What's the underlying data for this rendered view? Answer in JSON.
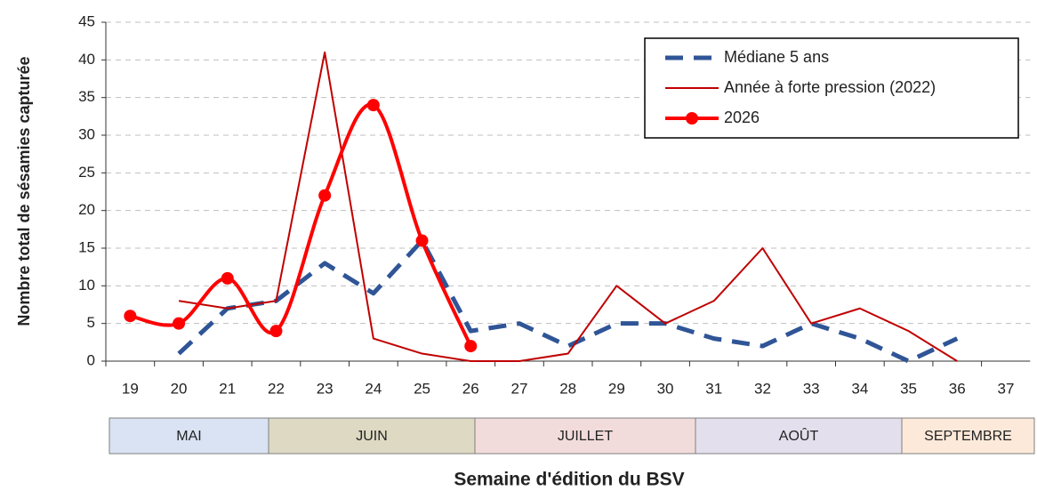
{
  "chart_data": {
    "type": "line",
    "x_label": "Semaine d'édition du BSV",
    "y_label": "Nombre total de sésamies capturée",
    "categories": [
      "19",
      "20",
      "21",
      "22",
      "23",
      "24",
      "25",
      "26",
      "27",
      "28",
      "29",
      "30",
      "31",
      "32",
      "33",
      "34",
      "35",
      "36",
      "37"
    ],
    "months": [
      "MAI",
      "JUIN",
      "JUILLET",
      "AOÛT",
      "SEPTEMBRE"
    ],
    "ylim": [
      0,
      45
    ],
    "yticks": [
      0,
      5,
      10,
      15,
      20,
      25,
      30,
      35,
      40,
      45
    ],
    "grid": true,
    "legend": "top-right",
    "series": [
      {
        "name": "Médiane 5 ans",
        "color": "#2f5597",
        "style": "dashed",
        "values": [
          null,
          1,
          7,
          8,
          13,
          9,
          16,
          4,
          5,
          2,
          5,
          5,
          3,
          2,
          5,
          3,
          0,
          3,
          null
        ]
      },
      {
        "name": "Année à forte pression (2022)",
        "color": "#c00000",
        "style": "thin",
        "values": [
          null,
          8,
          7,
          8,
          41,
          3,
          1,
          0,
          0,
          1,
          10,
          5,
          8,
          15,
          5,
          7,
          4,
          0,
          null
        ]
      },
      {
        "name": "2026",
        "color": "#ff0000",
        "style": "smooth-markers",
        "values": [
          6,
          5,
          11,
          4,
          22,
          34,
          16,
          2,
          null,
          null,
          null,
          null,
          null,
          null,
          null,
          null,
          null,
          null,
          null
        ]
      }
    ]
  }
}
